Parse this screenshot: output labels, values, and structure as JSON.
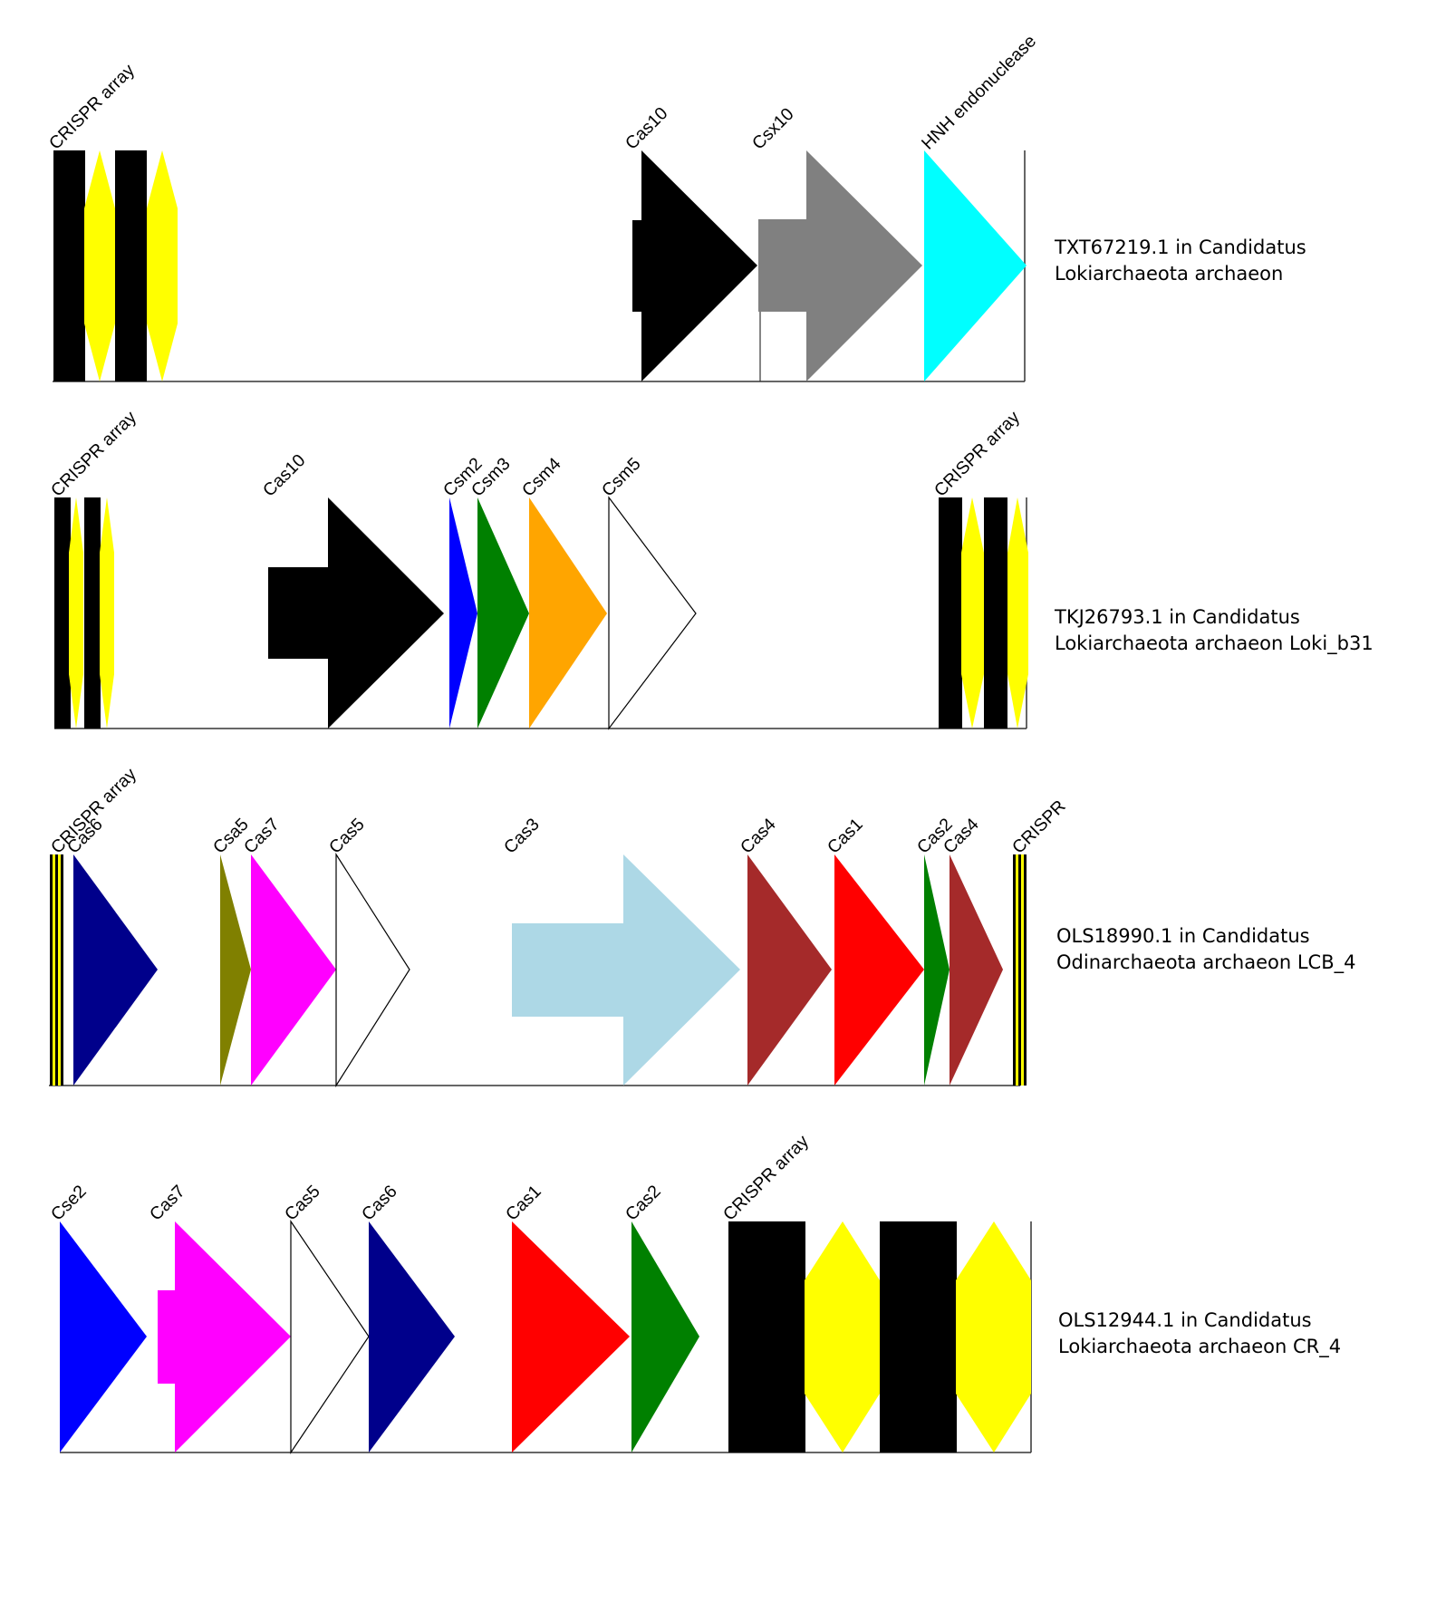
{
  "diagram": {
    "colors": {
      "crispr_repeat": "#000000",
      "crispr_spacer": "#FFFF00",
      "Cas10": "#000000",
      "Csx10": "#808080",
      "HNH": "#00FFFF",
      "Csm2": "#0000FF",
      "Csm3": "#008000",
      "Csm4": "#FFA500",
      "Csm5": "#FFFFFF",
      "Cas6": "#00008B",
      "Csa5": "#808000",
      "Cas7": "#FF00FF",
      "Cas5": "#FFFFFF",
      "Cas3": "#ADD8E6",
      "Cas4": "#A52A2A",
      "Cas1": "#FF0000",
      "Cas2": "#008000",
      "Cse2": "#0000FF"
    },
    "loci": [
      {
        "organism_line1": "TXT67219.1 in Candidatus",
        "organism_line2": "Lokiarchaeota archaeon",
        "labels": [
          "CRISPR array",
          "Cas10",
          "Csx10",
          "HNH endonuclease"
        ]
      },
      {
        "organism_line1": "TKJ26793.1 in Candidatus",
        "organism_line2": "Lokiarchaeota archaeon Loki_b31",
        "labels": [
          "CRISPR array",
          "Cas10",
          "Csm2",
          "Csm3",
          "Csm4",
          "Csm5",
          "CRISPR array"
        ]
      },
      {
        "organism_line1": "OLS18990.1 in Candidatus",
        "organism_line2": "Odinarchaeota archaeon LCB_4",
        "labels": [
          "CRISPR array",
          "Cas6",
          "Csa5",
          "Cas7",
          "Cas5",
          "Cas3",
          "Cas4",
          "Cas1",
          "Cas2",
          "Cas4",
          "CRISPR"
        ]
      },
      {
        "organism_line1": "OLS12944.1 in Candidatus",
        "organism_line2": "Lokiarchaeota archaeon CR_4",
        "labels": [
          "Cse2",
          "Cas7",
          "Cas5",
          "Cas6",
          "Cas1",
          "Cas2",
          "CRISPR array"
        ]
      }
    ]
  }
}
